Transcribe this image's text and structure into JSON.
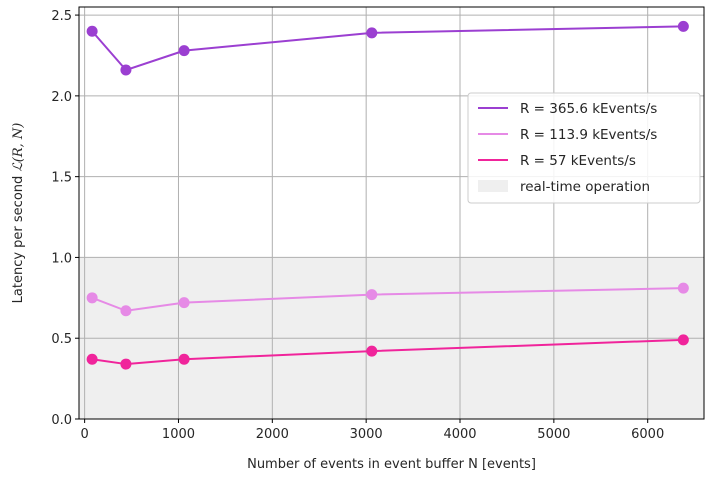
{
  "chart_data": {
    "type": "line",
    "title": "",
    "xlabel": "Number of events in event buffer N [events]",
    "ylabel_prefix": "Latency per second ",
    "ylabel_math": "ℒ(R, N)",
    "xlim": [
      -60,
      6600
    ],
    "ylim": [
      0.0,
      2.55
    ],
    "xticks": [
      0,
      1000,
      2000,
      3000,
      4000,
      5000,
      6000
    ],
    "yticks": [
      0.0,
      0.5,
      1.0,
      1.5,
      2.0,
      2.5
    ],
    "xtick_labels": [
      "0",
      "1000",
      "2000",
      "3000",
      "4000",
      "5000",
      "6000"
    ],
    "ytick_labels": [
      "0.0",
      "0.5",
      "1.0",
      "1.5",
      "2.0",
      "2.5"
    ],
    "grid": true,
    "legend_position": "center-right",
    "x": [
      80,
      440,
      1060,
      3060,
      6380
    ],
    "series": [
      {
        "name": "R = 365.6 kEvents/s",
        "color": "#9b3fd1",
        "values": [
          2.4,
          2.16,
          2.28,
          2.39,
          2.43
        ]
      },
      {
        "name": "R = 113.9 kEvents/s",
        "color": "#e68ae6",
        "values": [
          0.75,
          0.67,
          0.72,
          0.77,
          0.81
        ]
      },
      {
        "name": "R = 57 kEvents/s",
        "color": "#f0249b",
        "values": [
          0.37,
          0.34,
          0.37,
          0.42,
          0.49
        ]
      }
    ],
    "shaded_region": {
      "label": "real-time operation",
      "y_from": 0.0,
      "y_to": 1.0,
      "color": "#efefef"
    }
  }
}
